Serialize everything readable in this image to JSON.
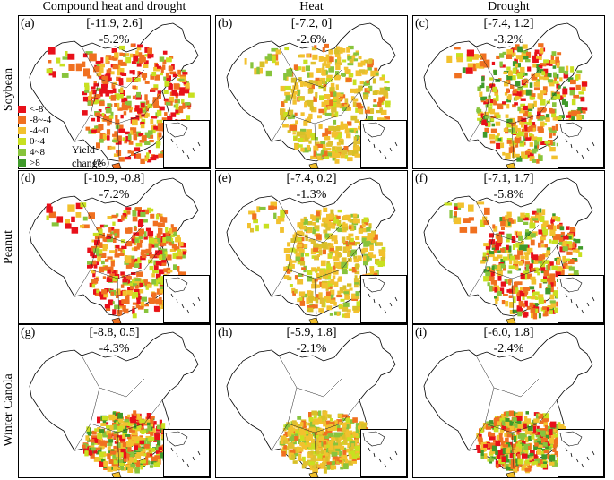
{
  "columns": [
    "Compound heat and drought",
    "Heat",
    "Drought"
  ],
  "rows": [
    "Soybean",
    "Peanut",
    "Winter Canola"
  ],
  "panels": [
    {
      "letter": "(a)",
      "range": "[-11.9, 2.6]",
      "mean": "-5.2%",
      "palette": "mixed_red"
    },
    {
      "letter": "(b)",
      "range": "[-7.2, 0]",
      "mean": "-2.6%",
      "palette": "mixed_yellow"
    },
    {
      "letter": "(c)",
      "range": "[-7.4, 1.2]",
      "mean": "-3.2%",
      "palette": "mixed_orange"
    },
    {
      "letter": "(d)",
      "range": "[-10.9, -0.8]",
      "mean": "-7.2%",
      "palette": "mixed_red"
    },
    {
      "letter": "(e)",
      "range": "[-7.4, 0.2]",
      "mean": "-1.3%",
      "palette": "mixed_yellow"
    },
    {
      "letter": "(f)",
      "range": "[-7.1, 1.7]",
      "mean": "-5.8%",
      "palette": "mixed_orange"
    },
    {
      "letter": "(g)",
      "range": "[-8.8, 0.5]",
      "mean": "-4.3%",
      "palette": "mixed_orange"
    },
    {
      "letter": "(h)",
      "range": "[-5.9, 1.8]",
      "mean": "-2.1%",
      "palette": "mixed_yellow"
    },
    {
      "letter": "(i)",
      "range": "[-6.0, 1.8]",
      "mean": "-2.4%",
      "palette": "mixed_orange"
    }
  ],
  "legend": {
    "title": "Yield change",
    "unit": "(%)",
    "items": [
      {
        "label": "<-8",
        "color": "#e8101a"
      },
      {
        "label": "-8~-4",
        "color": "#f07020"
      },
      {
        "label": "-4~0",
        "color": "#f2c12e"
      },
      {
        "label": "0~4",
        "color": "#c8e020"
      },
      {
        "label": "4~8",
        "color": "#88c43c"
      },
      {
        "label": ">8",
        "color": "#3f9a2a"
      }
    ]
  }
}
